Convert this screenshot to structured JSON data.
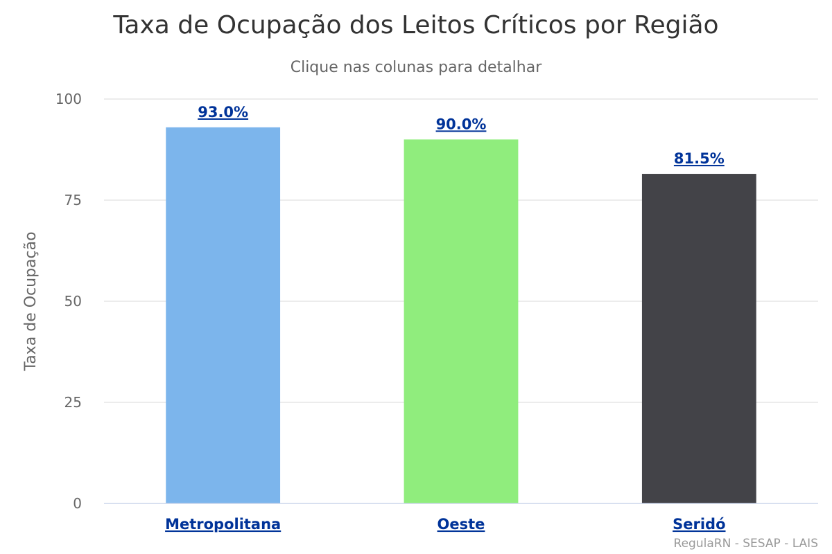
{
  "chart_data": {
    "type": "bar",
    "title": "Taxa de Ocupação dos Leitos Críticos por Região",
    "subtitle": "Clique nas colunas para detalhar",
    "xlabel": "",
    "ylabel": "Taxa de Ocupação",
    "ylim": [
      0,
      100
    ],
    "yticks": [
      0,
      25,
      50,
      75,
      100
    ],
    "grid": true,
    "categories": [
      "Metropolitana",
      "Oeste",
      "Seridó"
    ],
    "values": [
      93.0,
      90.0,
      81.5
    ],
    "data_labels": [
      "93.0%",
      "90.0%",
      "81.5%"
    ],
    "colors": [
      "#7cb5ec",
      "#90ed7d",
      "#434348"
    ],
    "label_color": "#003399"
  },
  "credits": "RegulaRN - SESAP - LAIS"
}
